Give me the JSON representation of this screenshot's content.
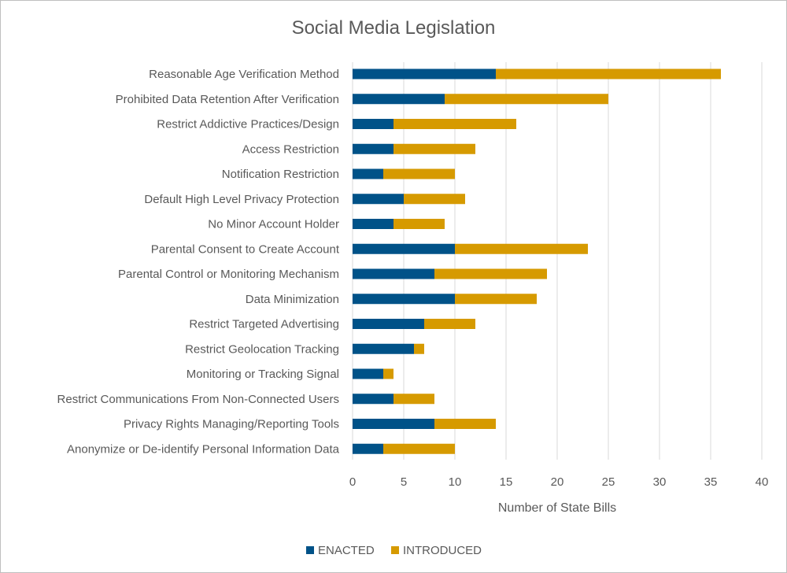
{
  "chart_data": {
    "type": "bar",
    "orientation": "horizontal",
    "stacked": true,
    "title": "Social Media Legislation",
    "xlabel": "Number of State Bills",
    "ylabel": "",
    "xlim": [
      0,
      40
    ],
    "xticks": [
      0,
      5,
      10,
      15,
      20,
      25,
      30,
      35,
      40
    ],
    "grid": true,
    "legend_position": "bottom",
    "categories": [
      "Reasonable Age Verification Method",
      "Prohibited Data Retention After Verification",
      "Restrict Addictive Practices/Design",
      "Access Restriction",
      "Notification Restriction",
      "Default High Level Privacy Protection",
      "No Minor Account Holder",
      "Parental Consent to Create Account",
      "Parental Control or Monitoring Mechanism",
      "Data Minimization",
      "Restrict Targeted Advertising",
      "Restrict Geolocation Tracking",
      "Monitoring or Tracking Signal",
      "Restrict Communications From Non-Connected Users",
      "Privacy Rights Managing/Reporting Tools",
      "Anonymize or De-identify Personal Information Data"
    ],
    "series": [
      {
        "name": "ENACTED",
        "color": "#005288",
        "values": [
          14,
          9,
          4,
          4,
          3,
          5,
          4,
          10,
          8,
          10,
          7,
          6,
          3,
          4,
          8,
          3
        ]
      },
      {
        "name": "INTRODUCED",
        "color": "#D69A00",
        "values": [
          22,
          16,
          12,
          8,
          7,
          6,
          5,
          13,
          11,
          8,
          5,
          1,
          1,
          4,
          6,
          7
        ]
      }
    ]
  }
}
